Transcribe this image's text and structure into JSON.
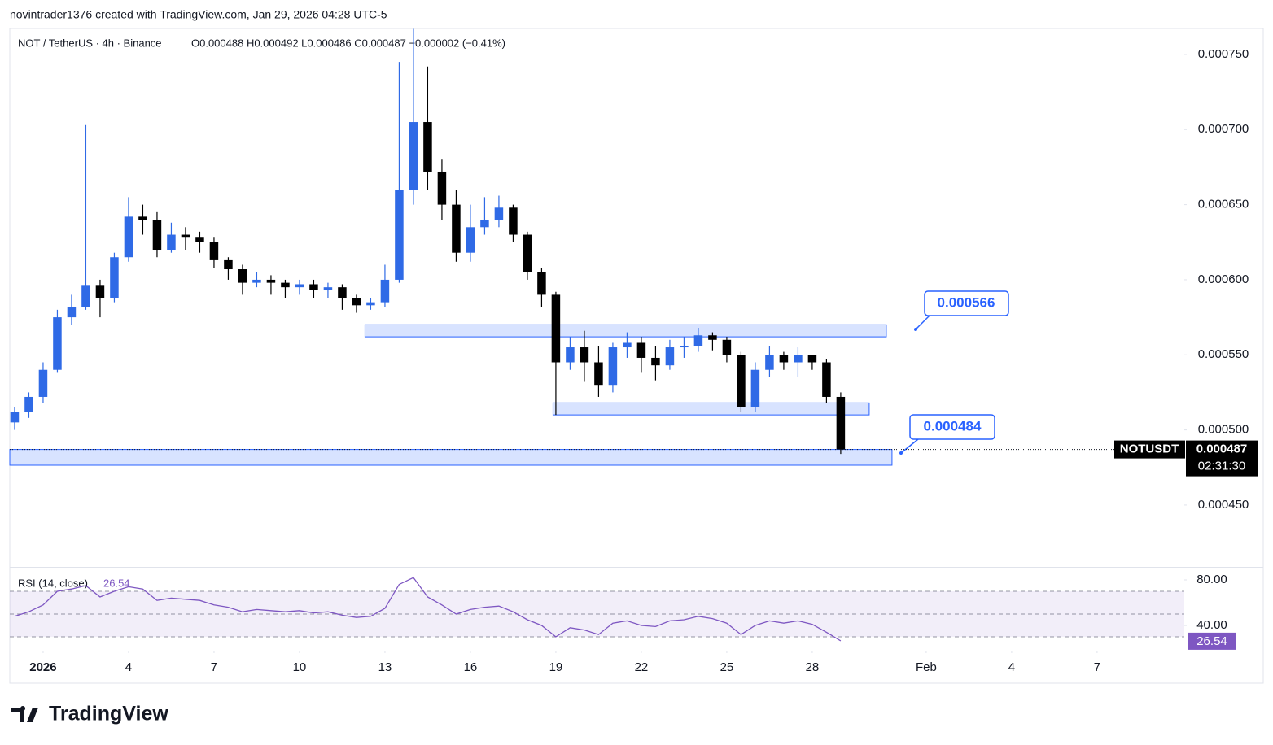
{
  "header": "novintrader1376 created with TradingView.com, Jan 29, 2026 04:28 UTC-5",
  "brand": "TradingView",
  "chart_data": [
    {
      "type": "candlestick",
      "symbol": "NOT / TetherUS · 4h · Binance",
      "ohlc_legend": "O0.000488 H0.000492 L0.000486 C0.000487 −0.000002 (−0.41%)",
      "ticker": "NOTUSDT",
      "last_price": {
        "value": 0.000487,
        "label": "0.000487"
      },
      "countdown": "02:31:30",
      "callouts": [
        "0.000566",
        "0.000484"
      ],
      "up_color": "#2f6ae6",
      "down_color": "#000000",
      "zones": [
        {
          "top": 0.00057,
          "bottom": 0.000562,
          "start": 11.3,
          "end": 29.6
        },
        {
          "top": 0.000518,
          "bottom": 0.00051,
          "start": 17.9,
          "end": 29.0
        },
        {
          "top": 0.000487,
          "bottom": 0.0004765,
          "start": -1.17,
          "end": 29.8
        }
      ],
      "x": [
        -1,
        -0.5,
        0,
        0.5,
        1,
        1.5,
        2,
        2.5,
        3,
        3.5,
        4,
        4.5,
        5,
        5.5,
        6,
        6.5,
        7,
        7.5,
        8,
        8.5,
        9,
        9.5,
        10,
        10.5,
        11,
        11.5,
        12,
        12.5,
        13,
        13.5,
        14,
        14.5,
        15,
        15.5,
        16,
        16.5,
        17,
        17.5,
        18,
        18.5,
        19,
        19.5,
        20,
        20.5,
        21,
        21.5,
        22,
        22.5,
        23,
        23.5,
        24,
        24.5,
        25,
        25.5,
        26,
        26.5,
        27,
        27.5,
        28
      ],
      "open": [
        0.000505,
        0.000512,
        0.000522,
        0.00054,
        0.000575,
        0.000582,
        0.000596,
        0.000588,
        0.000615,
        0.000642,
        0.00064,
        0.00062,
        0.00063,
        0.000628,
        0.000625,
        0.000613,
        0.000607,
        0.000598,
        0.0006,
        0.000598,
        0.000595,
        0.000597,
        0.000593,
        0.000595,
        0.000588,
        0.000583,
        0.000585,
        0.0006,
        0.00066,
        0.000705,
        0.000672,
        0.00065,
        0.000618,
        0.000635,
        0.00064,
        0.000648,
        0.00063,
        0.000605,
        0.00059,
        0.000545,
        0.000555,
        0.000545,
        0.00053,
        0.000555,
        0.000558,
        0.000548,
        0.000543,
        0.000555,
        0.000556,
        0.000563,
        0.00056,
        0.00055,
        0.000515,
        0.00054,
        0.00055,
        0.000545,
        0.00055,
        0.000545,
        0.000522
      ],
      "high": [
        0.000515,
        0.000525,
        0.000545,
        0.00058,
        0.00059,
        0.000703,
        0.0006,
        0.000618,
        0.000655,
        0.00065,
        0.000645,
        0.000638,
        0.000635,
        0.000632,
        0.000628,
        0.000615,
        0.00061,
        0.000605,
        0.000603,
        0.0006,
        0.0006,
        0.0006,
        0.000598,
        0.000597,
        0.00059,
        0.000588,
        0.00061,
        0.000745,
        0.000767,
        0.000742,
        0.00068,
        0.00066,
        0.00065,
        0.000655,
        0.000656,
        0.00065,
        0.000632,
        0.000608,
        0.000592,
        0.000562,
        0.000566,
        0.000556,
        0.000558,
        0.000565,
        0.000562,
        0.000556,
        0.00056,
        0.000562,
        0.000568,
        0.000565,
        0.000562,
        0.000552,
        0.000545,
        0.000556,
        0.000552,
        0.000555,
        0.00055,
        0.000547,
        0.000525
      ],
      "low": [
        0.0005,
        0.000508,
        0.000518,
        0.000538,
        0.00057,
        0.00058,
        0.000575,
        0.000585,
        0.000612,
        0.00063,
        0.000615,
        0.000618,
        0.00062,
        0.000618,
        0.000608,
        0.0006,
        0.00059,
        0.000595,
        0.00059,
        0.000588,
        0.00059,
        0.000588,
        0.000588,
        0.00058,
        0.000578,
        0.00058,
        0.000582,
        0.000598,
        0.00065,
        0.00066,
        0.00064,
        0.000612,
        0.000612,
        0.00063,
        0.000635,
        0.000625,
        0.0006,
        0.000582,
        0.00051,
        0.00054,
        0.000532,
        0.000522,
        0.000525,
        0.000548,
        0.000538,
        0.000533,
        0.00054,
        0.000548,
        0.000552,
        0.000553,
        0.000545,
        0.000512,
        0.000512,
        0.000535,
        0.00054,
        0.000535,
        0.00054,
        0.000518,
        0.000484
      ],
      "close": [
        0.000512,
        0.000522,
        0.00054,
        0.000575,
        0.000582,
        0.000596,
        0.000588,
        0.000615,
        0.000642,
        0.00064,
        0.00062,
        0.00063,
        0.000628,
        0.000625,
        0.000613,
        0.000607,
        0.000598,
        0.0006,
        0.000598,
        0.000595,
        0.000597,
        0.000593,
        0.000595,
        0.000588,
        0.000583,
        0.000585,
        0.0006,
        0.00066,
        0.000705,
        0.000672,
        0.00065,
        0.000618,
        0.000635,
        0.00064,
        0.000648,
        0.00063,
        0.000605,
        0.00059,
        0.000545,
        0.000555,
        0.000545,
        0.00053,
        0.000555,
        0.000558,
        0.000548,
        0.000543,
        0.000555,
        0.000556,
        0.000563,
        0.00056,
        0.00055,
        0.000515,
        0.00054,
        0.00055,
        0.000545,
        0.00055,
        0.000545,
        0.000522,
        0.000487
      ],
      "xlim": [
        -1.17,
        40.06
      ],
      "ylim": [
        0.0004088,
        0.0007673
      ],
      "xticks": [
        {
          "value": 0,
          "label": "2026"
        },
        {
          "value": 3,
          "label": "4"
        },
        {
          "value": 6,
          "label": "7"
        },
        {
          "value": 9,
          "label": "10"
        },
        {
          "value": 12,
          "label": "13"
        },
        {
          "value": 15,
          "label": "16"
        },
        {
          "value": 18,
          "label": "19"
        },
        {
          "value": 21,
          "label": "22"
        },
        {
          "value": 24,
          "label": "25"
        },
        {
          "value": 27,
          "label": "28"
        },
        {
          "value": 31,
          "label": "Feb"
        },
        {
          "value": 34,
          "label": "4"
        },
        {
          "value": 37,
          "label": "7"
        }
      ],
      "yticks": [
        {
          "value": 0.00045,
          "label": "0.000450"
        },
        {
          "value": 0.0005,
          "label": "0.000500"
        },
        {
          "value": 0.00055,
          "label": "0.000550"
        },
        {
          "value": 0.0006,
          "label": "0.000600"
        },
        {
          "value": 0.00065,
          "label": "0.000650"
        },
        {
          "value": 0.0007,
          "label": "0.000700"
        },
        {
          "value": 0.00075,
          "label": "0.000750"
        }
      ]
    },
    {
      "type": "line",
      "title": "RSI (14, close)",
      "color": "#7e57c2",
      "last_label": "26.54",
      "bands": [
        70,
        50,
        30
      ],
      "values": [
        48,
        52,
        58,
        70,
        72,
        75,
        65,
        70,
        74,
        72,
        62,
        64,
        63,
        62,
        58,
        56,
        52,
        54,
        53,
        52,
        53,
        51,
        52,
        49,
        47,
        48,
        55,
        76,
        82,
        65,
        58,
        50,
        54,
        56,
        57,
        52,
        45,
        40,
        30,
        38,
        36,
        32,
        42,
        44,
        40,
        39,
        44,
        45,
        48,
        46,
        42,
        32,
        40,
        44,
        42,
        44,
        41,
        34,
        26.54
      ],
      "ylim": [
        17.9,
        90.7
      ],
      "yticks": [
        {
          "value": 40,
          "label": "40.00"
        },
        {
          "value": 80,
          "label": "80.00"
        }
      ]
    }
  ]
}
